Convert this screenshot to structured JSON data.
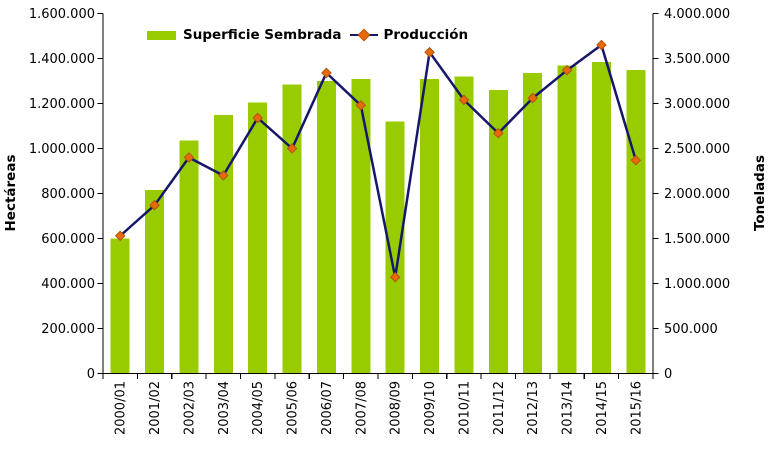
{
  "chart_data": {
    "type": "combo-bar-line",
    "title": "",
    "categories": [
      "2000/01",
      "2001/02",
      "2002/03",
      "2003/04",
      "2004/05",
      "2005/06",
      "2006/07",
      "2007/08",
      "2008/09",
      "2009/10",
      "2010/11",
      "2011/12",
      "2012/13",
      "2013/14",
      "2014/15",
      "2015/16"
    ],
    "series": [
      {
        "name": "Superficie Sembrada",
        "type": "bar",
        "axis": "left",
        "color": "#99CC00",
        "values": [
          600000,
          815000,
          1035000,
          1150000,
          1205000,
          1285000,
          1300000,
          1310000,
          1120000,
          1310000,
          1320000,
          1260000,
          1335000,
          1370000,
          1385000,
          1350000
        ]
      },
      {
        "name": "Producción",
        "type": "line",
        "axis": "right",
        "color": "#16166B",
        "marker": "diamond",
        "marker_color": "#E8690B",
        "marker_border_color": "#B4540A",
        "values": [
          1530000,
          1870000,
          2400000,
          2200000,
          2840000,
          2500000,
          3340000,
          2980000,
          1070000,
          3570000,
          3040000,
          2670000,
          3060000,
          3370000,
          3650000,
          2370000
        ]
      }
    ],
    "left_axis": {
      "label": "Hectáreas",
      "min": 0,
      "max": 1600000,
      "step": 200000,
      "tick_labels": [
        "1.600.000",
        "1.400.000",
        "1.200.000",
        "1.000.000",
        "800.000",
        "600.000",
        "400.000",
        "200.000",
        "0"
      ]
    },
    "right_axis": {
      "label": "Toneladas",
      "min": 0,
      "max": 4000000,
      "step": 500000,
      "tick_labels": [
        "4.000.000",
        "3.500.000",
        "3.000.000",
        "2.500.000",
        "2.000.000",
        "1.500.000",
        "1.000.000",
        "500.000",
        "0"
      ]
    },
    "legend_position": "top",
    "grid": false
  },
  "colors": {
    "background": "#FFFFFF",
    "axis": "#000000",
    "text": "#000000"
  }
}
